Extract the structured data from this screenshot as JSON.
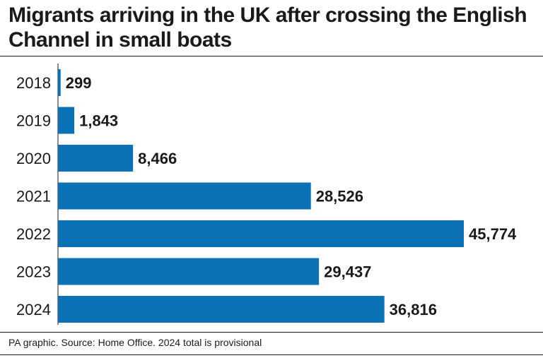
{
  "chart_data": {
    "type": "bar",
    "orientation": "horizontal",
    "title": "Migrants arriving in the UK after crossing the English Channel in small boats",
    "categories": [
      "2018",
      "2019",
      "2020",
      "2021",
      "2022",
      "2023",
      "2024"
    ],
    "values": [
      299,
      1843,
      8466,
      28526,
      45774,
      29437,
      36816
    ],
    "value_labels": [
      "299",
      "1,843",
      "8,466",
      "28,526",
      "45,774",
      "29,437",
      "36,816"
    ],
    "xlabel": "",
    "ylabel": "",
    "grid": false,
    "legend": "none",
    "bar_color": "#0a72b5"
  },
  "footer": {
    "source": "PA graphic. Source: Home Office. 2024 total is provisional"
  }
}
